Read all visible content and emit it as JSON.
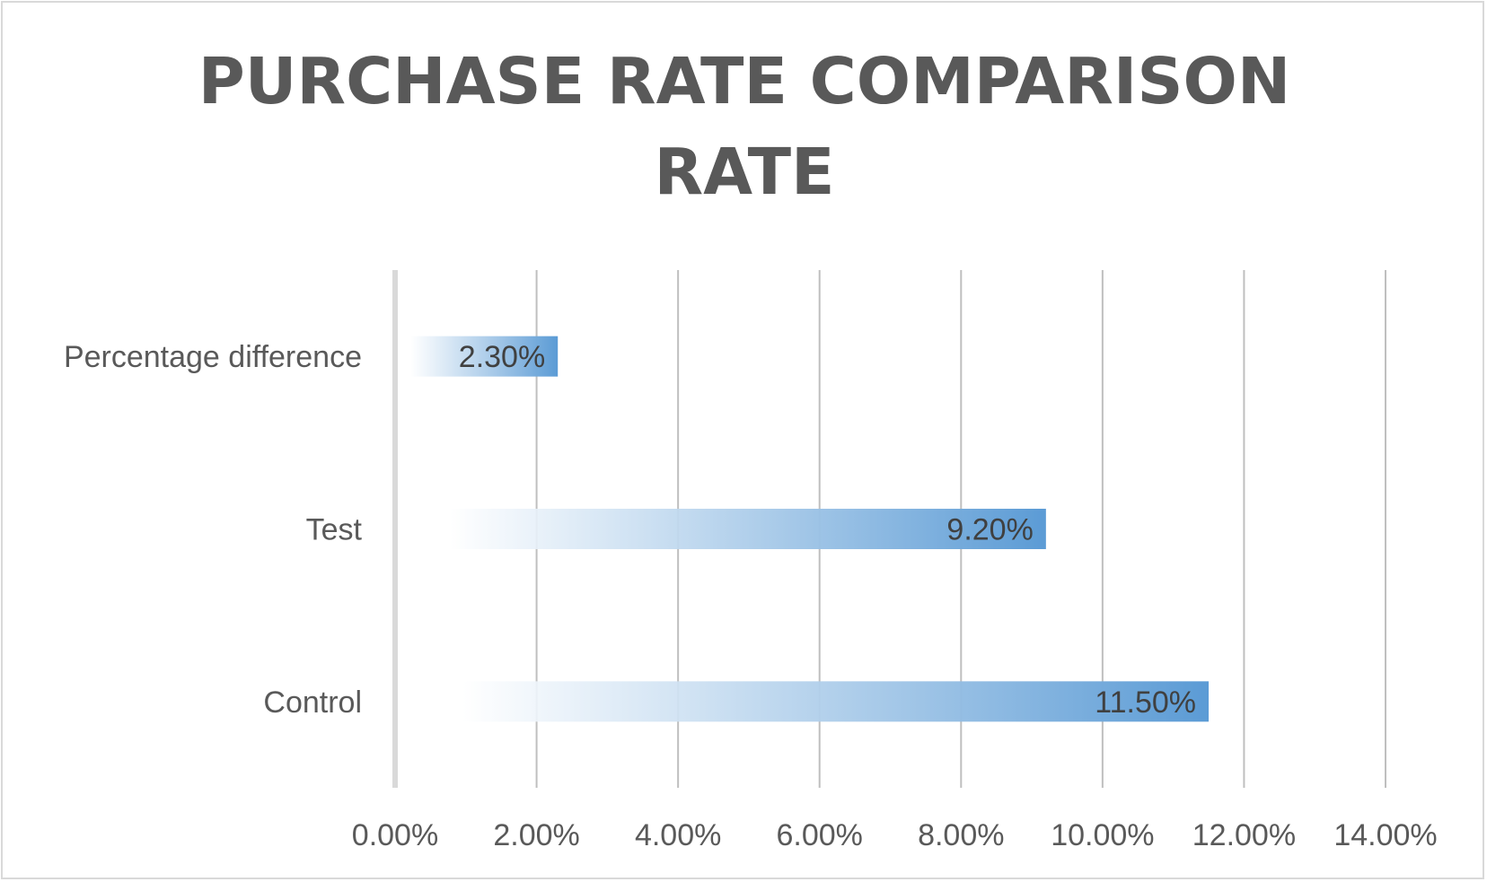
{
  "chart_data": {
    "type": "bar",
    "orientation": "horizontal",
    "title_lines": [
      "PURCHASE RATE COMPARISON",
      "RATE"
    ],
    "categories": [
      "Percentage difference",
      "Test",
      "Control"
    ],
    "values": [
      2.3,
      9.2,
      11.5
    ],
    "data_labels": [
      "2.30%",
      "9.20%",
      "11.50%"
    ],
    "xlim": [
      0,
      14
    ],
    "x_ticks": [
      0,
      2,
      4,
      6,
      8,
      10,
      12,
      14
    ],
    "x_tick_labels": [
      "0.00%",
      "2.00%",
      "4.00%",
      "6.00%",
      "8.00%",
      "10.00%",
      "12.00%",
      "14.00%"
    ],
    "grid": true,
    "legend": "none",
    "colors": {
      "bar_end": "#5b9bd5",
      "bar_start": "#ffffff",
      "gridline": "#bfbfbf",
      "axis_line": "#d9d9d9",
      "text": "#595959"
    }
  }
}
